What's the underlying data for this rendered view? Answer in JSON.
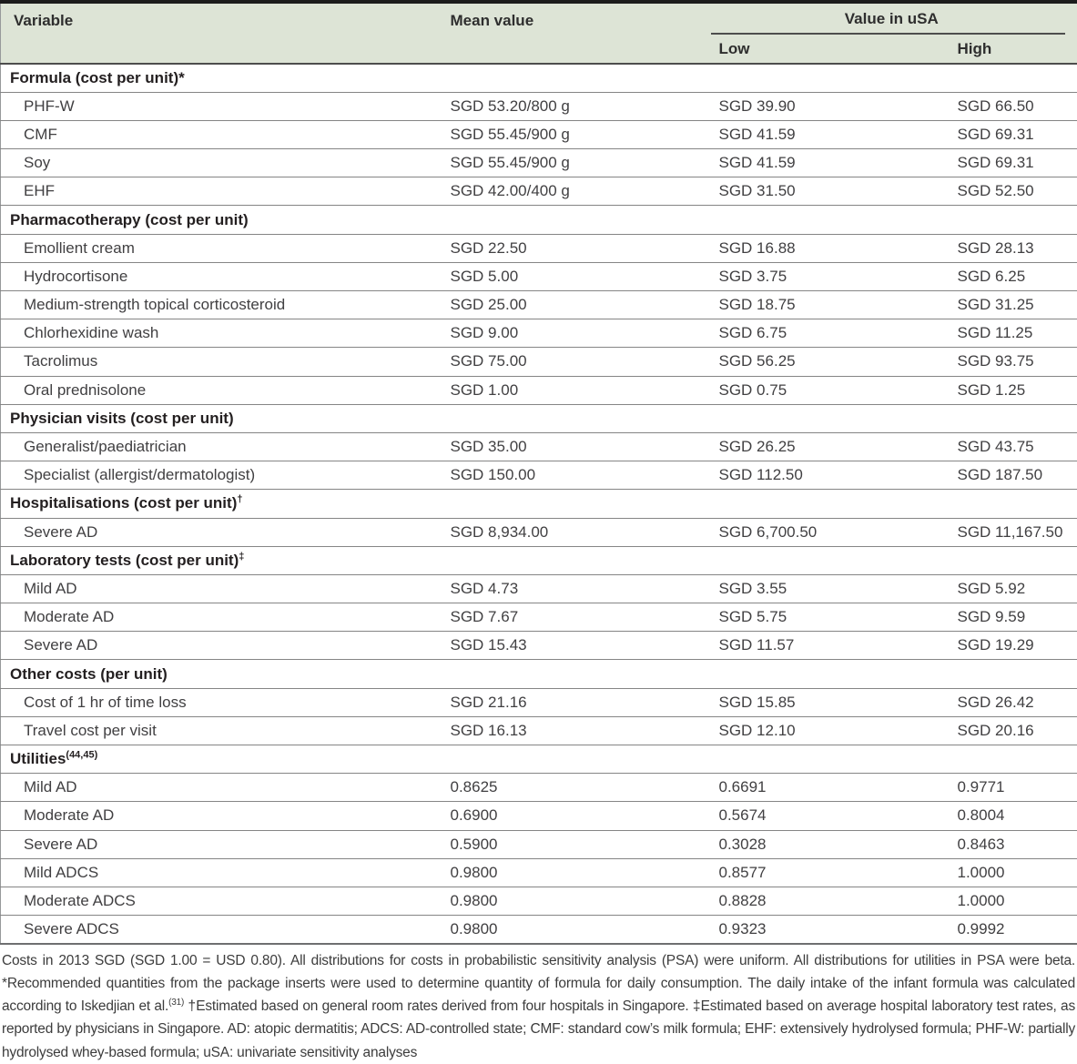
{
  "table": {
    "header": {
      "variable": "Variable",
      "mean": "Mean value",
      "usa": "Value in uSA",
      "low": "Low",
      "high": "High"
    },
    "sections": [
      {
        "label": "Formula (cost per unit)*",
        "sup": "",
        "rows": [
          {
            "variable": "PHF-W",
            "mean": "SGD 53.20/800 g",
            "low": "SGD 39.90",
            "high": "SGD 66.50"
          },
          {
            "variable": "CMF",
            "mean": "SGD 55.45/900 g",
            "low": "SGD 41.59",
            "high": "SGD 69.31"
          },
          {
            "variable": "Soy",
            "mean": "SGD 55.45/900 g",
            "low": "SGD 41.59",
            "high": "SGD 69.31"
          },
          {
            "variable": "EHF",
            "mean": "SGD 42.00/400 g",
            "low": "SGD 31.50",
            "high": "SGD 52.50"
          }
        ]
      },
      {
        "label": "Pharmacotherapy (cost per unit)",
        "sup": "",
        "rows": [
          {
            "variable": "Emollient cream",
            "mean": "SGD 22.50",
            "low": "SGD 16.88",
            "high": "SGD 28.13"
          },
          {
            "variable": "Hydrocortisone",
            "mean": "SGD 5.00",
            "low": "SGD 3.75",
            "high": "SGD 6.25"
          },
          {
            "variable": "Medium-strength topical corticosteroid",
            "mean": "SGD 25.00",
            "low": "SGD 18.75",
            "high": "SGD 31.25"
          },
          {
            "variable": "Chlorhexidine wash",
            "mean": "SGD 9.00",
            "low": "SGD 6.75",
            "high": "SGD 11.25"
          },
          {
            "variable": "Tacrolimus",
            "mean": "SGD 75.00",
            "low": "SGD 56.25",
            "high": "SGD 93.75"
          },
          {
            "variable": "Oral prednisolone",
            "mean": "SGD 1.00",
            "low": "SGD 0.75",
            "high": "SGD 1.25"
          }
        ]
      },
      {
        "label": "Physician visits (cost per unit)",
        "sup": "",
        "rows": [
          {
            "variable": "Generalist/paediatrician",
            "mean": "SGD 35.00",
            "low": "SGD 26.25",
            "high": "SGD 43.75"
          },
          {
            "variable": "Specialist (allergist/dermatologist)",
            "mean": "SGD 150.00",
            "low": "SGD 112.50",
            "high": "SGD 187.50"
          }
        ]
      },
      {
        "label": "Hospitalisations (cost per unit)",
        "sup": "†",
        "rows": [
          {
            "variable": "Severe AD",
            "mean": "SGD 8,934.00",
            "low": "SGD 6,700.50",
            "high": "SGD 11,167.50"
          }
        ]
      },
      {
        "label": "Laboratory tests (cost per unit)",
        "sup": "‡",
        "rows": [
          {
            "variable": "Mild AD",
            "mean": "SGD 4.73",
            "low": "SGD 3.55",
            "high": "SGD 5.92"
          },
          {
            "variable": "Moderate AD",
            "mean": "SGD 7.67",
            "low": "SGD 5.75",
            "high": "SGD 9.59"
          },
          {
            "variable": "Severe AD",
            "mean": "SGD 15.43",
            "low": "SGD 11.57",
            "high": "SGD 19.29"
          }
        ]
      },
      {
        "label": "Other costs (per unit)",
        "sup": "",
        "rows": [
          {
            "variable": "Cost of 1 hr of time loss",
            "mean": "SGD 21.16",
            "low": "SGD 15.85",
            "high": "SGD 26.42"
          },
          {
            "variable": "Travel cost per visit",
            "mean": "SGD 16.13",
            "low": "SGD 12.10",
            "high": "SGD 20.16"
          }
        ]
      },
      {
        "label": "Utilities",
        "sup": "(44,45)",
        "rows": [
          {
            "variable": "Mild AD",
            "mean": "0.8625",
            "low": "0.6691",
            "high": "0.9771"
          },
          {
            "variable": "Moderate AD",
            "mean": "0.6900",
            "low": "0.5674",
            "high": "0.8004"
          },
          {
            "variable": "Severe AD",
            "mean": "0.5900",
            "low": "0.3028",
            "high": "0.8463"
          },
          {
            "variable": "Mild ADCS",
            "mean": "0.9800",
            "low": "0.8577",
            "high": "1.0000"
          },
          {
            "variable": "Moderate ADCS",
            "mean": "0.9800",
            "low": "0.8828",
            "high": "1.0000"
          },
          {
            "variable": "Severe ADCS",
            "mean": "0.9800",
            "low": "0.9323",
            "high": "0.9992"
          }
        ]
      }
    ]
  },
  "footnote": {
    "part1": "Costs in 2013 SGD (SGD 1.00 = USD 0.80). All distributions for costs in probabilistic sensitivity analysis (PSA) were uniform. All distributions for utilities in PSA were beta. *Recommended quantities from the package inserts were used to determine quantity of formula for daily consumption. The daily intake of the infant formula was calculated according to Iskedjian et al.",
    "sup": "(31)",
    "part2": " †Estimated based on general room rates derived from four hospitals in Singapore. ‡Estimated based on average hospital laboratory test rates, as reported by physicians in Singapore. AD: atopic dermatitis; ADCS: AD-controlled state; CMF: standard cow’s milk formula; EHF: extensively hydrolysed formula; PHF-W: partially hydrolysed whey-based formula; uSA: univariate sensitivity analyses"
  }
}
